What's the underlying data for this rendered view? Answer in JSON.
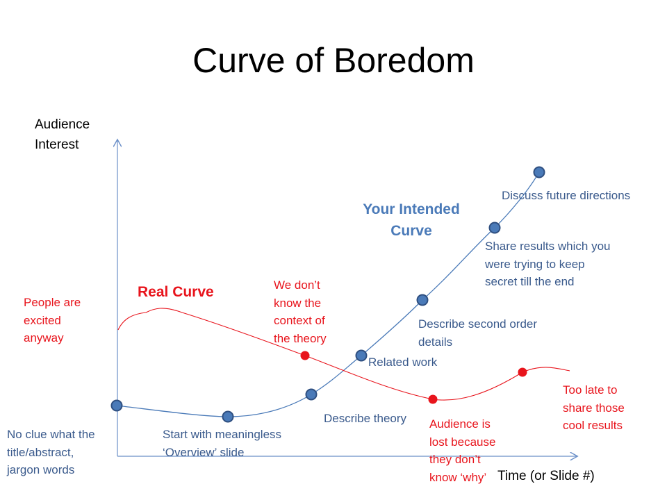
{
  "title": "Curve of Boredom",
  "y_axis_label": [
    "Audience",
    "Interest"
  ],
  "x_axis_label": "Time (or Slide #)",
  "intended_curve": {
    "label": [
      "Your Intended",
      "Curve"
    ],
    "color": "#4a7ab8",
    "points": [
      {
        "label": [
          "No clue what the",
          "title/abstract,",
          "jargon words"
        ]
      },
      {
        "label": [
          "Start with meaningless",
          "‘Overview’ slide"
        ]
      },
      {
        "label": [
          "Describe theory"
        ]
      },
      {
        "label": [
          "Related work"
        ]
      },
      {
        "label": [
          "Describe second order",
          "details"
        ]
      },
      {
        "label": [
          "Share results which you",
          "were trying to keep",
          "secret till the end"
        ]
      },
      {
        "label": [
          "Discuss future directions"
        ]
      }
    ]
  },
  "real_curve": {
    "label": "Real Curve",
    "color": "#e8141c",
    "start_label": [
      "People are",
      "excited",
      "anyway"
    ],
    "points": [
      {
        "label": [
          "We don’t",
          "know the",
          "context of",
          "the theory"
        ]
      },
      {
        "label": [
          "Audience is",
          "lost because",
          "they don’t",
          "know ‘why’"
        ]
      },
      {
        "label": [
          "Too late to",
          "share those",
          "cool results"
        ]
      }
    ]
  }
}
